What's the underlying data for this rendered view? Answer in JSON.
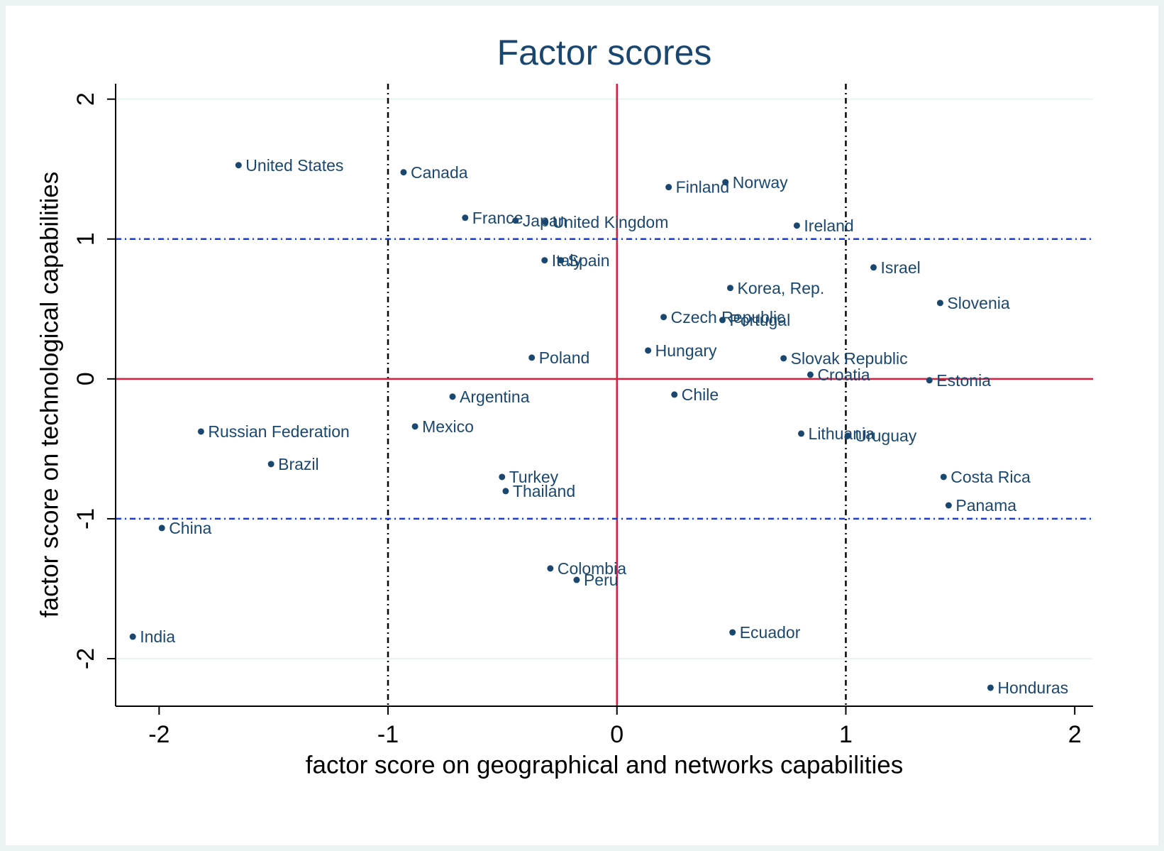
{
  "chart_data": {
    "type": "scatter",
    "title": "Factor scores",
    "xlabel": "factor score on geographical and networks capabilities",
    "ylabel": "factor score on technological capabilities",
    "xlim": [
      -2.19,
      2.08
    ],
    "ylim": [
      -2.34,
      2.11
    ],
    "xticks": [
      -2,
      -1,
      0,
      1,
      2
    ],
    "yticks": [
      -2,
      -1,
      0,
      1,
      2
    ],
    "grid": true,
    "color": "#1a476f",
    "xlines": [
      {
        "value": -1,
        "color": "#000000",
        "style": "dashdot"
      },
      {
        "value": 0,
        "color": "#d4213d",
        "style": "solid"
      },
      {
        "value": 1,
        "color": "#000000",
        "style": "dashdot"
      }
    ],
    "ylines": [
      {
        "value": -1,
        "color": "#1a3bd6",
        "style": "dashdot"
      },
      {
        "value": 0,
        "color": "#d4213d",
        "style": "solid"
      },
      {
        "value": 1,
        "color": "#1a3bd6",
        "style": "dashdot"
      }
    ],
    "labels": [
      "United States",
      "Canada",
      "Finland",
      "Norway",
      "France",
      "Japan",
      "United Kingdom",
      "Ireland",
      "Italy",
      "Spain",
      "Israel",
      "Korea, Rep.",
      "Slovenia",
      "Czech Republic",
      "Portugal",
      "Hungary",
      "Poland",
      "Slovak Republic",
      "Croatia",
      "Estonia",
      "Chile",
      "Argentina",
      "Mexico",
      "Russian Federation",
      "Lithuania",
      "Uruguay",
      "Brazil",
      "Turkey",
      "Costa Rica",
      "Thailand",
      "Panama",
      "China",
      "Colombia",
      "Peru",
      "India",
      "Ecuador",
      "Honduras"
    ],
    "x": [
      -1.653,
      -0.932,
      0.226,
      0.474,
      -0.663,
      -0.443,
      -0.313,
      0.786,
      -0.316,
      -0.245,
      1.121,
      0.495,
      1.412,
      0.204,
      0.461,
      0.136,
      -0.372,
      0.728,
      0.845,
      1.365,
      0.251,
      -0.718,
      -0.882,
      -1.817,
      0.805,
      1.009,
      -1.511,
      -0.502,
      1.427,
      -0.486,
      1.449,
      -1.988,
      -0.291,
      -0.176,
      -2.115,
      0.505,
      1.632
    ],
    "y": [
      1.528,
      1.477,
      1.371,
      1.406,
      1.152,
      1.132,
      1.122,
      1.096,
      0.848,
      0.848,
      0.797,
      0.65,
      0.543,
      0.442,
      0.421,
      0.203,
      0.152,
      0.147,
      0.03,
      -0.01,
      -0.112,
      -0.127,
      -0.34,
      -0.376,
      -0.391,
      -0.406,
      -0.609,
      -0.701,
      -0.701,
      -0.802,
      -0.904,
      -1.066,
      -1.355,
      -1.437,
      -1.843,
      -1.812,
      -2.208
    ]
  }
}
